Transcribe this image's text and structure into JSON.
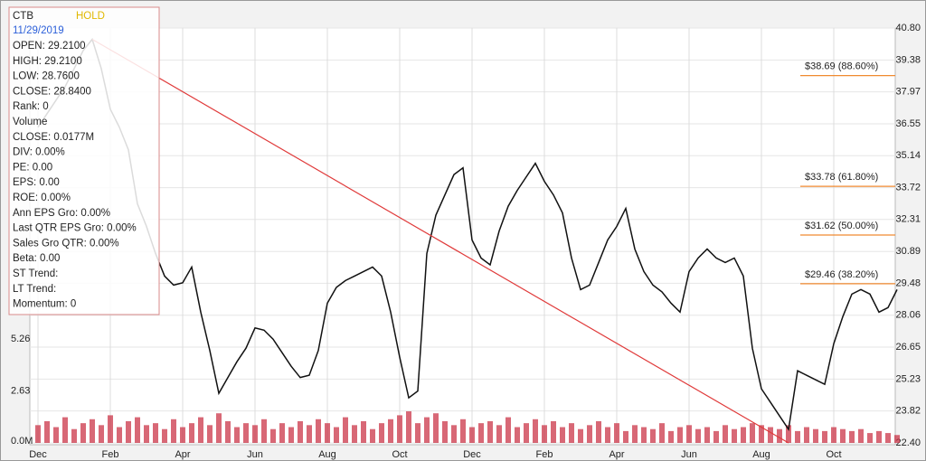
{
  "info": {
    "ticker": "CTB",
    "rating": "HOLD",
    "date": "11/29/2019",
    "lines": [
      "OPEN: 29.2100",
      "HIGH: 29.2100",
      "LOW: 28.7600",
      "CLOSE: 28.8400",
      "Rank: 0",
      "Volume",
      "CLOSE: 0.0177M",
      "DIV: 0.00%",
      "PE: 0.00",
      "EPS: 0.00",
      "ROE: 0.00%",
      "Ann EPS Gro: 0.00%",
      "Last QTR EPS Gro: 0.00%",
      "Sales Gro QTR: 0.00%",
      "Beta: 0.00",
      "ST Trend:",
      "LT Trend:",
      "Momentum: 0"
    ]
  },
  "chart_data": {
    "type": "line",
    "categories": [
      "Dec",
      null,
      null,
      null,
      null,
      null,
      null,
      null,
      "Feb",
      null,
      null,
      null,
      null,
      null,
      null,
      null,
      "Apr",
      null,
      null,
      null,
      null,
      null,
      null,
      null,
      "Jun",
      null,
      null,
      null,
      null,
      null,
      null,
      null,
      "Aug",
      null,
      null,
      null,
      null,
      null,
      null,
      null,
      "Oct",
      null,
      null,
      null,
      null,
      null,
      null,
      null,
      "Dec",
      null,
      null,
      null,
      null,
      null,
      null,
      null,
      "Feb",
      null,
      null,
      null,
      null,
      null,
      null,
      null,
      "Apr",
      null,
      null,
      null,
      null,
      null,
      null,
      null,
      "Jun",
      null,
      null,
      null,
      null,
      null,
      null,
      null,
      "Aug",
      null,
      null,
      null,
      null,
      null,
      null,
      null,
      "Oct",
      null,
      null,
      null,
      null,
      null,
      null,
      null
    ],
    "series": [
      {
        "name": "Price",
        "color": "#111111",
        "values": [
          36.4,
          37.0,
          37.6,
          38.2,
          39.0,
          39.8,
          40.3,
          39.0,
          37.2,
          36.4,
          35.4,
          33.0,
          32.0,
          30.8,
          29.8,
          29.4,
          29.5,
          30.2,
          28.2,
          26.5,
          24.6,
          25.3,
          26.0,
          26.6,
          27.5,
          27.4,
          27.0,
          26.4,
          25.8,
          25.3,
          25.4,
          26.5,
          28.6,
          29.3,
          29.6,
          29.8,
          30.0,
          30.2,
          29.8,
          28.2,
          26.2,
          24.4,
          24.7,
          30.8,
          32.5,
          33.4,
          34.3,
          34.6,
          31.4,
          30.6,
          30.3,
          31.8,
          32.9,
          33.6,
          34.2,
          34.8,
          34.0,
          33.4,
          32.6,
          30.6,
          29.2,
          29.4,
          30.4,
          31.4,
          32.0,
          32.8,
          31.0,
          30.0,
          29.4,
          29.1,
          28.6,
          28.2,
          30.0,
          30.6,
          31.0,
          30.6,
          30.4,
          30.6,
          29.8,
          26.6,
          24.8,
          24.2,
          23.6,
          23.0,
          25.6,
          25.4,
          25.2,
          25.0,
          26.8,
          28.0,
          29.0,
          29.2,
          29.0,
          28.2,
          28.4,
          29.2
        ]
      },
      {
        "name": "Volume",
        "color": "#c8283c",
        "axis": "y2",
        "values": [
          0.9,
          1.1,
          0.8,
          1.3,
          0.7,
          1.0,
          1.2,
          0.9,
          1.4,
          0.8,
          1.1,
          1.3,
          0.9,
          1.0,
          0.7,
          1.2,
          0.8,
          1.0,
          1.3,
          0.9,
          1.5,
          1.1,
          0.8,
          1.0,
          0.9,
          1.2,
          0.7,
          1.0,
          0.8,
          1.1,
          0.9,
          1.2,
          1.0,
          0.8,
          1.3,
          0.9,
          1.1,
          0.7,
          1.0,
          1.2,
          1.4,
          1.6,
          1.0,
          1.3,
          1.5,
          1.1,
          0.9,
          1.2,
          0.8,
          1.0,
          1.1,
          0.9,
          1.3,
          0.8,
          1.0,
          1.2,
          0.9,
          1.1,
          0.8,
          1.0,
          0.7,
          0.9,
          1.1,
          0.8,
          1.0,
          0.6,
          0.9,
          0.8,
          0.7,
          1.0,
          0.6,
          0.8,
          0.9,
          0.7,
          0.8,
          0.6,
          0.9,
          0.7,
          0.8,
          1.0,
          0.9,
          0.8,
          0.7,
          0.9,
          0.6,
          0.8,
          0.7,
          0.6,
          0.8,
          0.7,
          0.6,
          0.7,
          0.5,
          0.6,
          0.5,
          0.4
        ]
      }
    ],
    "ylim": [
      22.4,
      40.8
    ],
    "yticks": [
      {
        "value": 40.8,
        "label": "40.80"
      },
      39.38,
      37.97,
      36.55,
      35.14,
      33.72,
      32.31,
      30.89,
      29.48,
      28.06,
      26.65,
      25.23,
      23.82,
      {
        "value": 22.4,
        "label": "22.40"
      }
    ],
    "y2lim": [
      0,
      21.0
    ],
    "y2ticks": [
      {
        "value": 0,
        "label": "0.0M"
      },
      2.63,
      5.26
    ],
    "grid": true,
    "trendline": {
      "x": [
        6,
        83
      ],
      "values": [
        40.3,
        22.4
      ],
      "color": "#e03a3a"
    },
    "levels": {
      "color": "#f08a30",
      "items": [
        {
          "value": 38.69,
          "label": "$38.69 (88.60%)"
        },
        {
          "value": 33.78,
          "label": "$33.78 (61.80%)"
        },
        {
          "value": 31.62,
          "label": "$31.62 (50.00%)"
        },
        {
          "value": 29.46,
          "label": "$29.46 (38.20%)"
        }
      ]
    }
  }
}
